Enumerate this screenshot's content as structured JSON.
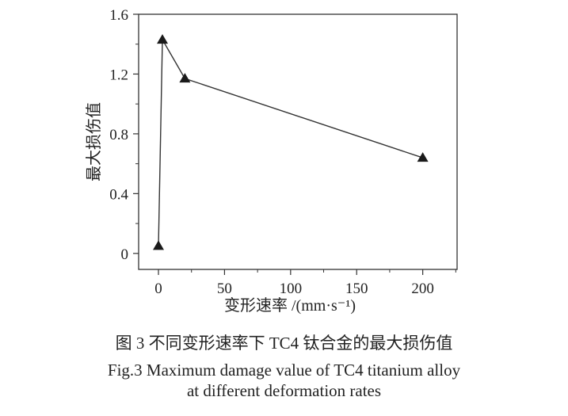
{
  "chart_data": {
    "type": "line",
    "title": "",
    "xlabel": "变形速率 /(mm·s⁻¹)",
    "ylabel": "最大损伤值",
    "xlim": [
      -15,
      226
    ],
    "ylim": [
      -0.107,
      1.6
    ],
    "xticks": [
      0,
      50,
      100,
      150,
      200
    ],
    "yticks": [
      0,
      0.4,
      0.8,
      1.2,
      1.6
    ],
    "xtick_labels": [
      "0",
      "50",
      "100",
      "150",
      "200"
    ],
    "ytick_labels": [
      "0",
      "0.4",
      "0.8",
      "1.2",
      "1.6"
    ],
    "grid": false,
    "marker": "triangle",
    "series": [
      {
        "x": [
          0,
          3,
          20,
          200
        ],
        "y": [
          0.05,
          1.43,
          1.17,
          0.64
        ]
      }
    ],
    "colors": {
      "line": "#333333",
      "marker": "#1a1a1a"
    }
  },
  "caption": {
    "cn": "图 3  不同变形速率下 TC4 钛合金的最大损伤值",
    "en_line1": "Fig.3  Maximum damage value of TC4 titanium alloy",
    "en_line2": "at different deformation rates"
  }
}
